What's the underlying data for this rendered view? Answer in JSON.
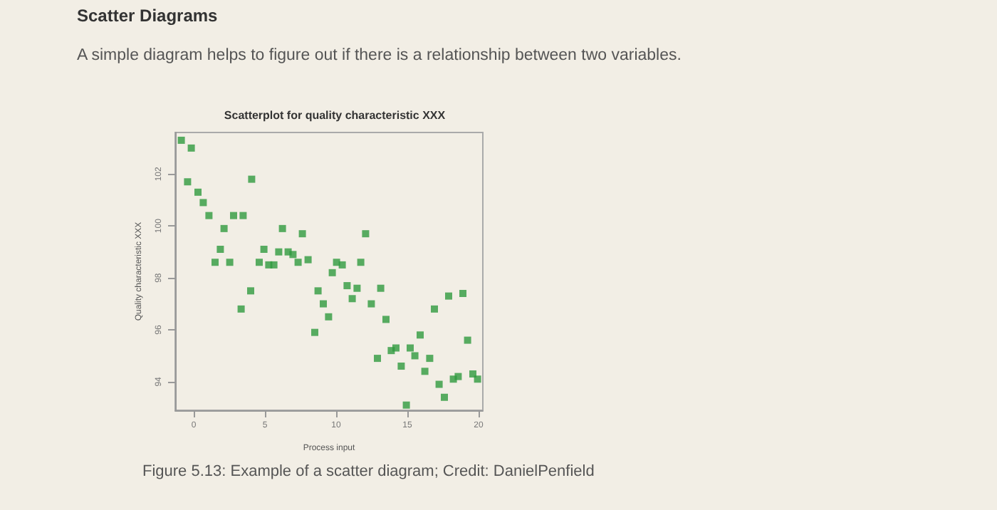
{
  "chart_data": {
    "type": "scatter",
    "title": "Scatterplot for quality characteristic XXX",
    "xlabel": "Process input",
    "ylabel": "Quality characteristic XXX",
    "annotations": [
      "Scatter Diagrams",
      "A simple diagram helps to figure out if there is a relationship between two variables.",
      "Figure 5.13: Example of a scatter diagram; Credit: DanielPenfield"
    ],
    "x": [
      -0.87,
      -0.17,
      -0.43,
      0.3,
      0.67,
      1.07,
      2.13,
      1.87,
      1.5,
      2.53,
      2.8,
      3.47,
      4.07,
      4.0,
      3.33,
      4.6,
      4.93,
      5.27,
      5.63,
      6.23,
      5.97,
      6.63,
      6.97,
      7.33,
      7.63,
      8.03,
      8.5,
      8.73,
      9.1,
      9.47,
      9.73,
      10.03,
      10.43,
      10.77,
      11.13,
      11.47,
      11.73,
      12.07,
      12.47,
      13.13,
      12.9,
      13.5,
      13.87,
      14.2,
      14.57,
      14.93,
      15.2,
      15.53,
      15.9,
      16.23,
      16.57,
      16.9,
      17.23,
      17.6,
      17.9,
      18.23,
      18.57,
      18.9,
      19.23,
      19.6,
      19.93
    ],
    "values": [
      103.3,
      103.0,
      101.7,
      101.3,
      100.9,
      100.4,
      99.9,
      99.1,
      98.6,
      98.6,
      100.4,
      100.4,
      101.8,
      97.5,
      96.8,
      98.6,
      99.1,
      98.5,
      98.5,
      99.9,
      99.0,
      99.0,
      98.9,
      98.6,
      99.7,
      98.7,
      95.9,
      97.5,
      97.0,
      96.5,
      98.2,
      98.6,
      98.5,
      97.7,
      97.2,
      97.6,
      98.6,
      99.7,
      97.0,
      97.6,
      94.9,
      96.4,
      95.2,
      95.3,
      94.6,
      93.1,
      95.3,
      95.0,
      95.8,
      94.4,
      94.9,
      96.8,
      93.9,
      93.4,
      97.3,
      94.1,
      94.2,
      97.4,
      95.6,
      94.3,
      94.1
    ],
    "color": "#2f9a3f",
    "marker": "square",
    "grid": false,
    "xlim": [
      -1.3,
      20.3
    ],
    "xticks": [
      0,
      5,
      10,
      15,
      20
    ],
    "ylim": [
      92.9,
      103.6
    ],
    "yticks": [
      94,
      96,
      98,
      100,
      102
    ]
  }
}
